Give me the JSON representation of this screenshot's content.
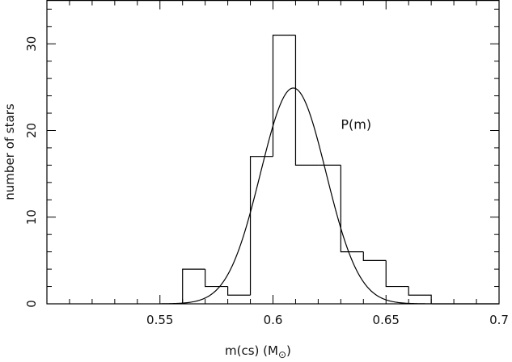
{
  "chart_data": {
    "type": "histogram",
    "xlabel": "m(cs) (M",
    "xlabel_sun_symbol": "⊙",
    "xlabel_close": ")",
    "ylabel": "number of stars",
    "xlim": [
      0.5,
      0.7
    ],
    "ylim": [
      0,
      35
    ],
    "x_ticks": [
      0.55,
      0.6,
      0.65,
      0.7
    ],
    "x_tick_labels": [
      "0.55",
      "0.6",
      "0.65",
      "0.7"
    ],
    "x_minor_step": 0.01,
    "y_ticks": [
      0,
      10,
      20,
      30
    ],
    "y_tick_labels": [
      "0",
      "10",
      "20",
      "30"
    ],
    "y_minor_step": 2,
    "bins": [
      {
        "x0": 0.56,
        "x1": 0.57,
        "count": 4
      },
      {
        "x0": 0.57,
        "x1": 0.58,
        "count": 2
      },
      {
        "x0": 0.58,
        "x1": 0.59,
        "count": 1
      },
      {
        "x0": 0.59,
        "x1": 0.6,
        "count": 17
      },
      {
        "x0": 0.6,
        "x1": 0.61,
        "count": 31
      },
      {
        "x0": 0.61,
        "x1": 0.62,
        "count": 16
      },
      {
        "x0": 0.62,
        "x1": 0.63,
        "count": 16
      },
      {
        "x0": 0.63,
        "x1": 0.64,
        "count": 6
      },
      {
        "x0": 0.64,
        "x1": 0.65,
        "count": 5
      },
      {
        "x0": 0.65,
        "x1": 0.66,
        "count": 2
      },
      {
        "x0": 0.66,
        "x1": 0.67,
        "count": 1
      }
    ],
    "curve": {
      "name": "P(m)",
      "type": "gaussian",
      "peak_x": 0.609,
      "peak_y": 24.9,
      "sigma": 0.0145,
      "x_start": 0.55,
      "x_end": 0.7
    },
    "annotations": [
      {
        "text": "P(m)",
        "x": 0.63,
        "y": 20.2
      }
    ]
  }
}
